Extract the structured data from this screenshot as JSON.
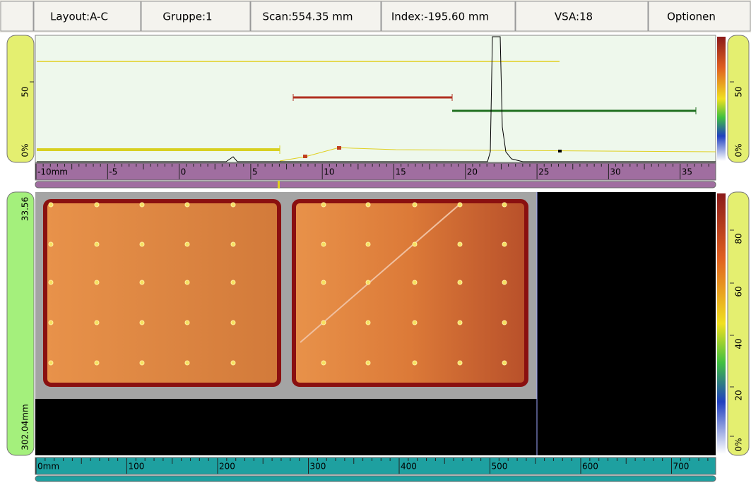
{
  "toolbar": {
    "items": [
      "Layout:A-C",
      "Gruppe:1",
      "Scan:554.35 mm",
      "Index:-195.60 mm",
      "VSA:18",
      "Optionen"
    ]
  },
  "a_scan": {
    "left_ruler": [
      "50",
      "0%"
    ],
    "right_ruler": [
      "50",
      "0%"
    ],
    "ruler": [
      "-10mm",
      "-5",
      "0",
      "5",
      "10",
      "15",
      "20",
      "25",
      "30",
      "35"
    ]
  },
  "c_scan": {
    "left_ruler": [
      "33.56",
      "302.04mm"
    ],
    "right_ruler": [
      "80",
      "60",
      "40",
      "20",
      "0%"
    ],
    "ruler": [
      "0mm",
      "100",
      "200",
      "300",
      "400",
      "500",
      "600",
      "700"
    ]
  }
}
